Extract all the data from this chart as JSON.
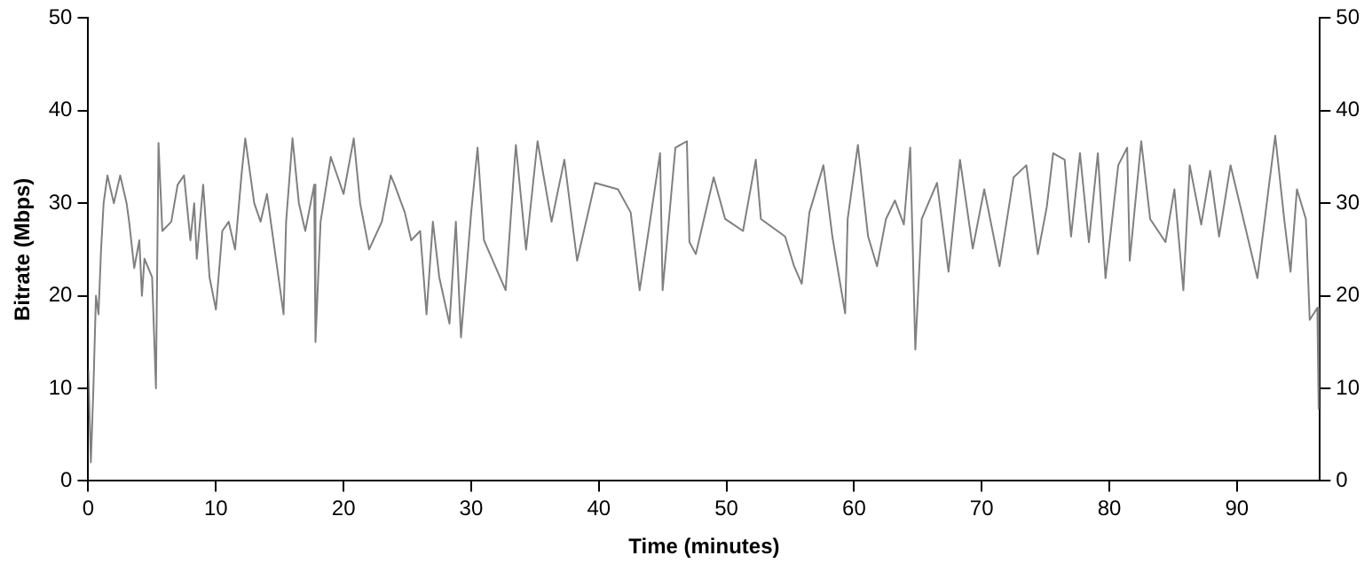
{
  "chart_data": {
    "type": "line",
    "xlabel": "Time (minutes)",
    "ylabel": "Bitrate (Mbps)",
    "x": [
      0,
      0.2,
      0.4,
      0.6,
      0.8,
      1.0,
      1.2,
      1.5,
      2.0,
      2.5,
      3,
      3.2,
      3.6,
      4,
      4.2,
      4.4,
      5,
      5.3,
      5.5,
      5.8,
      6.5,
      7,
      7.5,
      8,
      8.3,
      8.5,
      9,
      9.5,
      10,
      10.5,
      11,
      11.5,
      12,
      12.3,
      13,
      13.5,
      14,
      15.3,
      15.5,
      16,
      16.5,
      17,
      17.7,
      17.8,
      18.2,
      19,
      20,
      20.8,
      21.3,
      22,
      23,
      23.7,
      24,
      24.8,
      25.3,
      26,
      26.5,
      27,
      27.5,
      28.3,
      28.8,
      29.2,
      30,
      30.5,
      31,
      32.7,
      33.5,
      34.3,
      35.2,
      36.3,
      37.3,
      38.3,
      39.7,
      41.5,
      42.5,
      43.2,
      43.9,
      44.8,
      45,
      46,
      46.9,
      47.1,
      47.6,
      49,
      49.9,
      51.3,
      52.3,
      52.7,
      54.6,
      55.3,
      55.9,
      56.5,
      57.6,
      58.3,
      59.3,
      59.5,
      60.3,
      61.1,
      61.8,
      62.5,
      63.2,
      63.9,
      64.4,
      64.8,
      65.3,
      66.5,
      67.4,
      68.3,
      69.3,
      70.2,
      71.4,
      72.5,
      73.5,
      74.4,
      75.1,
      75.6,
      76.5,
      77,
      77.7,
      78.4,
      79.1,
      79.7,
      80.7,
      81.4,
      81.6,
      82.5,
      83.2,
      84.4,
      85.1,
      85.8,
      86.3,
      87.2,
      87.9,
      88.6,
      89.5,
      90.5,
      91.6,
      92.3,
      93,
      93.7,
      94.2,
      94.7,
      95.4,
      95.7,
      96.3,
      96.4
    ],
    "series": [
      {
        "color": "#808080",
        "values": [
          12,
          2,
          10,
          20,
          18,
          25,
          30,
          33,
          30,
          33,
          30,
          28,
          23,
          26,
          20,
          24,
          22,
          10,
          36.5,
          27,
          28,
          32,
          33,
          26,
          30,
          24,
          32,
          22,
          18.5,
          27,
          28,
          25,
          33,
          37,
          30,
          28,
          31,
          18,
          28,
          37,
          30,
          27,
          32,
          15,
          28,
          35,
          31,
          37,
          30,
          25,
          28,
          33,
          32,
          29,
          26,
          27,
          18,
          28,
          22,
          17,
          28,
          15.5,
          29,
          36,
          26,
          20.6,
          36.3,
          25,
          36.7,
          28,
          34.7,
          23.8,
          32.2,
          31.5,
          29,
          20.6,
          27,
          35.4,
          20.6,
          36,
          36.7,
          25.8,
          24.5,
          32.8,
          28.3,
          27,
          34.7,
          28.3,
          26.4,
          23.2,
          21.3,
          29,
          34.1,
          26.4,
          18.1,
          28.3,
          36.3,
          26.4,
          23.2,
          28.3,
          30.3,
          27.7,
          36,
          14.2,
          28.3,
          32.2,
          22.6,
          34.7,
          25.1,
          31.5,
          23.2,
          32.8,
          34.1,
          24.5,
          29.6,
          35.4,
          34.7,
          26.4,
          35.4,
          25.8,
          35.4,
          21.9,
          34.1,
          36,
          23.8,
          36.7,
          28.3,
          25.8,
          31.5,
          20.6,
          34.1,
          27.7,
          33.5,
          26.4,
          34.1,
          28.3,
          21.9,
          29.6,
          37.3,
          28.3,
          22.6,
          31.5,
          28.3,
          17.4,
          18.7,
          7.8
        ]
      }
    ],
    "xlim": [
      0,
      96.5
    ],
    "xticks": [
      0,
      10,
      20,
      30,
      40,
      50,
      60,
      70,
      80,
      90
    ],
    "ylim": [
      0,
      50
    ],
    "yticks": [
      0,
      10,
      20,
      30,
      40,
      50
    ],
    "y2lim": [
      0,
      50
    ],
    "y2ticks": [
      0,
      10,
      20,
      30,
      40,
      50
    ],
    "grid": false,
    "legend": false,
    "marker": "none",
    "line_style": "solid"
  }
}
